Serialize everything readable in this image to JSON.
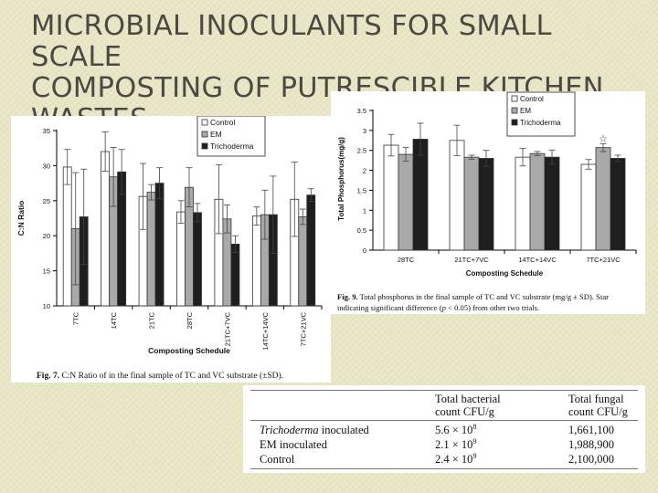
{
  "slide": {
    "title_lines": [
      "MICROBIAL INOCULANTS FOR SMALL SCALE",
      "COMPOSTING OF PUTRESCIBLE KITCHEN",
      "WASTES"
    ]
  },
  "chart_data": [
    {
      "type": "bar",
      "ylabel": "C:N Ratio",
      "xlabel": "Composting Schedule",
      "ylim": [
        10,
        35
      ],
      "yticks": [
        10,
        15,
        20,
        25,
        30,
        35
      ],
      "categories": [
        "7TC",
        "14TC",
        "21TC",
        "28TC",
        "21TC+7VC",
        "14TC+14VC",
        "7TC+21VC"
      ],
      "series": [
        {
          "name": "Control",
          "color": "#ffffff",
          "values": [
            29.8,
            32,
            25.6,
            23.4,
            25.2,
            22.8,
            25.2
          ],
          "errors": [
            2.5,
            2.8,
            4.7,
            1.6,
            4.9,
            1.3,
            5.3
          ]
        },
        {
          "name": "EM",
          "color": "#a9a9a9",
          "values": [
            21,
            28.4,
            26.2,
            26.9,
            22.4,
            23,
            22.7
          ],
          "errors": [
            8,
            4.2,
            1.1,
            2.8,
            2,
            3.5,
            1.1
          ]
        },
        {
          "name": "Trichoderma",
          "color": "#1e1e1e",
          "values": [
            22.7,
            29.1,
            27.5,
            23.3,
            18.8,
            23,
            25.8
          ],
          "errors": [
            6.8,
            3.2,
            2.2,
            1.3,
            1.2,
            5.5,
            0.9
          ]
        }
      ],
      "legend": "top-right",
      "caption_label": "Fig. 7.",
      "caption_text": "C:N Ratio of in the final sample of TC and VC substrate (±SD)."
    },
    {
      "type": "bar",
      "ylabel": "Total Phosphorus(mg/g)",
      "xlabel": "Composting Schedule",
      "ylim": [
        0,
        3.5
      ],
      "yticks": [
        "0",
        "0.5",
        "1",
        "1.5",
        "2",
        "2.5",
        "3",
        "3.5"
      ],
      "categories": [
        "28TC",
        "21TC+7VC",
        "14TC+14VC",
        "7TC+21VC"
      ],
      "series": [
        {
          "name": "Control",
          "color": "#ffffff",
          "values": [
            2.63,
            2.75,
            2.33,
            2.15
          ],
          "errors": [
            0.27,
            0.38,
            0.22,
            0.12
          ]
        },
        {
          "name": "EM",
          "color": "#a9a9a9",
          "values": [
            2.4,
            2.33,
            2.42,
            2.57
          ],
          "errors": [
            0.17,
            0.05,
            0.05,
            0.1
          ]
        },
        {
          "name": "Trichoderma",
          "color": "#1e1e1e",
          "values": [
            2.78,
            2.3,
            2.33,
            2.3
          ],
          "errors": [
            0.4,
            0.2,
            0.18,
            0.08
          ]
        }
      ],
      "star_marker": "☆",
      "legend": "top-right",
      "caption_label": "Fig. 9.",
      "caption_line1": "Total phosphorus in the final sample of TC and VC substrate (mg/g ± SD). Star",
      "caption_line2_a": "indicating significant difference (",
      "caption_line2_p": "p",
      "caption_line2_b": " < 0.05) from other two trials."
    },
    {
      "type": "table",
      "header_bacterial_1": "Total bacterial",
      "header_bacterial_2": "count CFU/g",
      "header_fungal_1": "Total fungal",
      "header_fungal_2": "count CFU/g",
      "rows": [
        {
          "label_italic": "Trichoderma",
          "label_rest": " inoculated",
          "bacterial_mantissa": "5.6 × 10",
          "bacterial_exp": "8",
          "fungal": "1,661,100"
        },
        {
          "label_italic": "",
          "label_rest": "EM inoculated",
          "bacterial_mantissa": "2.1 × 10",
          "bacterial_exp": "9",
          "fungal": "1,988,900"
        },
        {
          "label_italic": "",
          "label_rest": "Control",
          "bacterial_mantissa": "2.4 × 10",
          "bacterial_exp": "9",
          "fungal": "2,100,000"
        }
      ]
    }
  ]
}
